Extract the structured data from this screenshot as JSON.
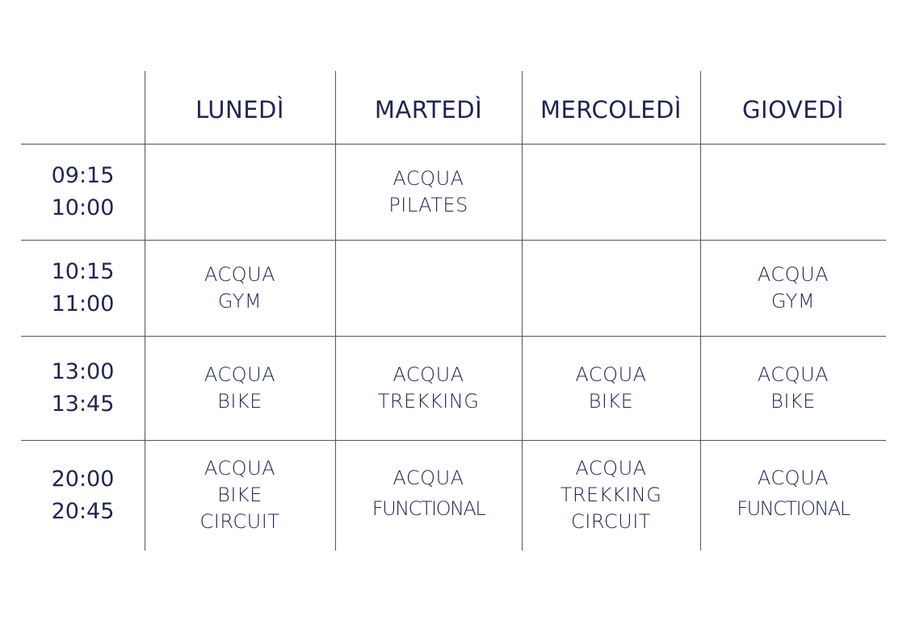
{
  "table": {
    "header": [
      "LUNEDÌ",
      "MARTEDÌ",
      "MERCOLEDÌ",
      "GIOVEDÌ"
    ],
    "rows": [
      {
        "start": "09:15",
        "end": "10:00",
        "cells": [
          [],
          [
            "ACQUA",
            "PILATES"
          ],
          [],
          []
        ]
      },
      {
        "start": "10:15",
        "end": "11:00",
        "cells": [
          [
            "ACQUA",
            "GYM"
          ],
          [],
          [],
          [
            "ACQUA",
            "GYM"
          ]
        ]
      },
      {
        "start": "13:00",
        "end": "13:45",
        "cells": [
          [
            "ACQUA",
            "BIKE"
          ],
          [
            "ACQUA",
            "TREKKING"
          ],
          [
            "ACQUA",
            "BIKE"
          ],
          [
            "ACQUA",
            "BIKE"
          ]
        ]
      },
      {
        "start": "20:00",
        "end": "20:45",
        "cells": [
          [
            "ACQUA",
            "BIKE",
            "CIRCUIT"
          ],
          [
            "ACQUA",
            "FUNCTIONAL"
          ],
          [
            "ACQUA",
            "TREKKING",
            "CIRCUIT"
          ],
          [
            "ACQUA",
            "FUNCTIONAL"
          ]
        ]
      }
    ]
  }
}
